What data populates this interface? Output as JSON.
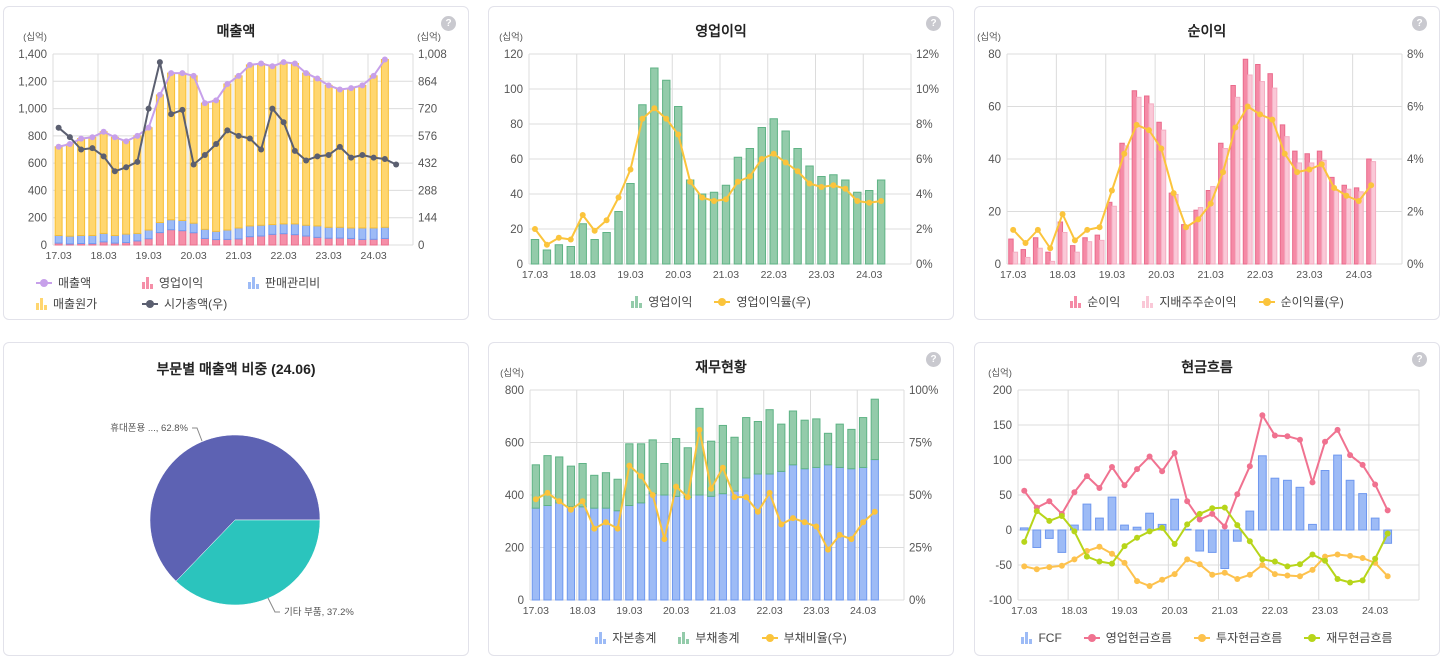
{
  "help_label": "?",
  "chart_data": [
    {
      "type": "bar",
      "title": "매출액",
      "unit_left": "(십억)",
      "unit_right": "(십억)",
      "x_ticks": [
        "17.03",
        "18.03",
        "19.03",
        "20.03",
        "21.03",
        "22.03",
        "23.03",
        "24.03"
      ],
      "y_left": {
        "range": [
          0,
          1400
        ],
        "ticks": [
          "0",
          "200",
          "400",
          "600",
          "800",
          "1,000",
          "1,200",
          "1,400"
        ]
      },
      "y_right": {
        "range": [
          0,
          1008
        ],
        "ticks": [
          "0",
          "144",
          "288",
          "432",
          "576",
          "720",
          "864",
          "1,008"
        ]
      },
      "bar_mode": "stack",
      "grid": true,
      "legend_position": "bottom",
      "series": [
        {
          "name": "매출액",
          "type": "line",
          "axis": "left",
          "color": "#c7a0ea",
          "values": [
            720,
            740,
            780,
            790,
            830,
            790,
            760,
            800,
            860,
            1100,
            1260,
            1260,
            1240,
            1040,
            1060,
            1180,
            1240,
            1320,
            1330,
            1310,
            1340,
            1330,
            1260,
            1220,
            1170,
            1140,
            1150,
            1170,
            1240,
            1360
          ]
        },
        {
          "name": "영업이익",
          "type": "bar",
          "axis": "left",
          "color": "#f58fa8",
          "border": "#ea6f8d",
          "values": [
            14,
            8,
            11,
            10,
            23,
            14,
            18,
            30,
            46,
            91,
            112,
            105,
            90,
            48,
            40,
            41,
            45,
            61,
            66,
            78,
            83,
            76,
            66,
            56,
            50,
            51,
            48,
            41,
            42,
            48
          ]
        },
        {
          "name": "판매관리비",
          "type": "bar",
          "axis": "left",
          "color": "#9dbbf6",
          "border": "#6f98ef",
          "values": [
            56,
            57,
            59,
            60,
            62,
            56,
            62,
            55,
            64,
            74,
            73,
            75,
            70,
            67,
            60,
            69,
            80,
            79,
            79,
            72,
            72,
            79,
            79,
            84,
            80,
            79,
            77,
            84,
            83,
            82
          ]
        },
        {
          "name": "매출원가",
          "type": "bar",
          "axis": "left",
          "color": "#ffd66f",
          "border": "#f7bf34",
          "values": [
            650,
            675,
            710,
            720,
            745,
            720,
            680,
            715,
            750,
            935,
            1075,
            1080,
            1080,
            925,
            960,
            1070,
            1115,
            1180,
            1185,
            1160,
            1185,
            1175,
            1115,
            1080,
            1040,
            1010,
            1025,
            1045,
            1115,
            1230
          ]
        },
        {
          "name": "시가총액(우)",
          "type": "line",
          "axis": "right",
          "color": "#5b5f70",
          "values": [
            619,
            569,
            504,
            511,
            468,
            389,
            410,
            439,
            720,
            965,
            691,
            713,
            425,
            475,
            533,
            605,
            576,
            562,
            504,
            720,
            648,
            497,
            446,
            468,
            475,
            518,
            461,
            475,
            461,
            454,
            425
          ]
        }
      ]
    },
    {
      "type": "bar",
      "title": "영업이익",
      "unit_left": "(십억)",
      "x_ticks": [
        "17.03",
        "18.03",
        "19.03",
        "20.03",
        "21.03",
        "22.03",
        "23.03",
        "24.03"
      ],
      "y_left": {
        "range": [
          0,
          120
        ],
        "ticks": [
          "0",
          "20",
          "40",
          "60",
          "80",
          "100",
          "120"
        ]
      },
      "y_right": {
        "range": [
          0,
          12
        ],
        "ticks": [
          "0%",
          "2%",
          "4%",
          "6%",
          "8%",
          "10%",
          "12%"
        ]
      },
      "bar_mode": "stack",
      "grid": true,
      "legend_position": "bottom",
      "series": [
        {
          "name": "영업이익",
          "type": "bar",
          "axis": "left",
          "color": "#93cbaa",
          "border": "#5fb385",
          "values": [
            14,
            8,
            11,
            10,
            23,
            14,
            18,
            30,
            46,
            91,
            112,
            105,
            90,
            48,
            40,
            41,
            45,
            61,
            66,
            78,
            83,
            76,
            66,
            56,
            50,
            51,
            48,
            41,
            42,
            48
          ]
        },
        {
          "name": "영업이익률(우)",
          "type": "line",
          "axis": "right",
          "color": "#fbc43c",
          "values": [
            2.0,
            1.1,
            1.5,
            1.4,
            2.8,
            1.9,
            2.5,
            3.8,
            5.4,
            8.3,
            8.9,
            8.3,
            7.4,
            4.7,
            3.8,
            3.6,
            3.7,
            4.7,
            5.0,
            6.0,
            6.3,
            5.8,
            5.3,
            4.6,
            4.4,
            4.5,
            4.3,
            3.6,
            3.5,
            3.6
          ]
        }
      ]
    },
    {
      "type": "bar",
      "title": "순이익",
      "unit_left": "(십억)",
      "x_ticks": [
        "17.03",
        "18.03",
        "19.03",
        "20.03",
        "21.03",
        "22.03",
        "23.03",
        "24.03"
      ],
      "y_left": {
        "range": [
          0,
          80
        ],
        "ticks": [
          "0",
          "20",
          "40",
          "60",
          "80"
        ]
      },
      "y_right": {
        "range": [
          0,
          8
        ],
        "ticks": [
          "0%",
          "2%",
          "4%",
          "6%",
          "8%"
        ]
      },
      "bar_mode": "group",
      "grid": true,
      "legend_position": "bottom",
      "series": [
        {
          "name": "순이익",
          "type": "bar",
          "axis": "left",
          "color": "#f58aa6",
          "border": "#ea6b8c",
          "values": [
            9.5,
            5.5,
            10,
            4.5,
            16,
            7,
            10,
            11,
            23.5,
            46,
            66,
            64,
            54,
            27,
            15,
            20.5,
            28,
            46,
            68,
            78,
            76,
            72.5,
            53,
            43,
            42,
            43,
            33,
            30,
            29,
            40
          ]
        },
        {
          "name": "지배주주순이익",
          "type": "bar",
          "axis": "left",
          "color": "#fac8d7",
          "border": "#f5adc2",
          "values": [
            4.5,
            2.5,
            6,
            1,
            12,
            4.5,
            8.5,
            9,
            22,
            45,
            63.5,
            61,
            51,
            26.5,
            14.5,
            21.5,
            29.5,
            44,
            63.5,
            72,
            69.5,
            67,
            48.5,
            38.5,
            38.5,
            39.5,
            28,
            28.5,
            27.5,
            39
          ]
        },
        {
          "name": "순이익률(우)",
          "type": "line",
          "axis": "right",
          "color": "#fbc43c",
          "values": [
            1.3,
            0.8,
            1.3,
            0.6,
            1.9,
            0.9,
            1.3,
            1.4,
            2.8,
            4.2,
            5.3,
            5.1,
            4.4,
            2.7,
            1.4,
            1.7,
            2.3,
            3.5,
            5.2,
            6.0,
            5.7,
            5.5,
            4.2,
            3.5,
            3.6,
            3.8,
            2.9,
            2.6,
            2.4,
            3.0
          ]
        }
      ]
    },
    {
      "type": "pie",
      "title": "부문별 매출액 비중 (24.06)",
      "slices": [
        {
          "label": "휴대폰용 ..., 62.8%",
          "value": 62.8,
          "color": "#5d62b3"
        },
        {
          "label": "기타 부품, 37.2%",
          "value": 37.2,
          "color": "#2bc4bd"
        }
      ]
    },
    {
      "type": "bar",
      "title": "재무현황",
      "unit_left": "(십억)",
      "x_ticks": [
        "17.03",
        "18.03",
        "19.03",
        "20.03",
        "21.03",
        "22.03",
        "23.03",
        "24.03"
      ],
      "y_left": {
        "range": [
          0,
          800
        ],
        "ticks": [
          "0",
          "200",
          "400",
          "600",
          "800"
        ]
      },
      "y_right": {
        "range": [
          0,
          100
        ],
        "ticks": [
          "0%",
          "25%",
          "50%",
          "75%",
          "100%"
        ]
      },
      "bar_mode": "stack",
      "grid": true,
      "legend_position": "bottom",
      "series": [
        {
          "name": "자본총계",
          "type": "bar",
          "axis": "left",
          "color": "#9dbbf6",
          "border": "#6f98ef",
          "values": [
            350,
            360,
            370,
            355,
            355,
            350,
            350,
            340,
            360,
            370,
            405,
            400,
            395,
            390,
            400,
            395,
            405,
            415,
            465,
            480,
            480,
            490,
            515,
            500,
            505,
            515,
            505,
            500,
            505,
            535
          ]
        },
        {
          "name": "부채총계",
          "type": "bar",
          "axis": "left",
          "color": "#93cbaa",
          "border": "#5fb385",
          "values": [
            165,
            190,
            175,
            155,
            165,
            125,
            135,
            120,
            235,
            225,
            205,
            120,
            220,
            190,
            330,
            210,
            260,
            205,
            230,
            200,
            245,
            180,
            205,
            185,
            185,
            120,
            165,
            150,
            190,
            230
          ]
        },
        {
          "name": "부채비율(우)",
          "type": "line",
          "axis": "right",
          "color": "#fbc43c",
          "values": [
            48,
            51,
            47,
            43,
            47,
            34,
            37,
            34,
            64,
            59,
            50,
            29,
            54,
            49,
            81,
            53,
            63,
            49,
            49,
            42,
            51,
            36,
            39,
            37,
            35,
            24,
            31,
            29,
            37,
            42
          ]
        }
      ]
    },
    {
      "type": "bar",
      "title": "현금흐름",
      "unit_left": "(십억)",
      "x_ticks": [
        "17.03",
        "18.03",
        "19.03",
        "20.03",
        "21.03",
        "22.03",
        "23.03",
        "24.03"
      ],
      "y_left": {
        "range": [
          -100,
          200
        ],
        "ticks": [
          "-100",
          "-50",
          "0",
          "50",
          "100",
          "150",
          "200"
        ]
      },
      "bar_mode": "stack",
      "grid": true,
      "legend_position": "bottom",
      "series": [
        {
          "name": "FCF",
          "type": "bar",
          "axis": "left",
          "color": "#9dbbf6",
          "border": "#6f98ef",
          "values": [
            3,
            -25,
            -12,
            -32,
            7,
            37,
            17,
            47,
            7,
            4,
            24,
            8,
            44,
            1,
            -30,
            -32,
            -55,
            -16,
            27,
            106,
            74,
            71,
            61,
            8,
            85,
            107,
            71,
            52,
            17,
            -19
          ]
        },
        {
          "name": "영업현금흐름",
          "type": "line",
          "axis": "left",
          "color": "#f07290",
          "values": [
            56,
            32,
            41,
            23,
            54,
            77,
            60,
            90,
            64,
            87,
            105,
            84,
            110,
            41,
            15,
            23,
            5,
            51,
            91,
            164,
            135,
            134,
            129,
            68,
            126,
            143,
            107,
            93,
            65,
            28
          ]
        },
        {
          "name": "투자현금흐름",
          "type": "line",
          "axis": "left",
          "color": "#fdc24d",
          "values": [
            -52,
            -56,
            -53,
            -51,
            -42,
            -30,
            -24,
            -34,
            -47,
            -73,
            -80,
            -71,
            -63,
            -42,
            -49,
            -64,
            -61,
            -70,
            -64,
            -50,
            -63,
            -65,
            -66,
            -57,
            -38,
            -35,
            -37,
            -40,
            -47,
            -66
          ]
        },
        {
          "name": "재무현금흐름",
          "type": "line",
          "axis": "left",
          "color": "#b7d51a",
          "values": [
            -17,
            27,
            13,
            20,
            -2,
            -38,
            -45,
            -48,
            -23,
            -11,
            -2,
            3,
            -20,
            8,
            23,
            31,
            32,
            7,
            -16,
            -42,
            -45,
            -52,
            -49,
            -35,
            -44,
            -70,
            -75,
            -72,
            -41,
            -5
          ]
        }
      ]
    }
  ]
}
